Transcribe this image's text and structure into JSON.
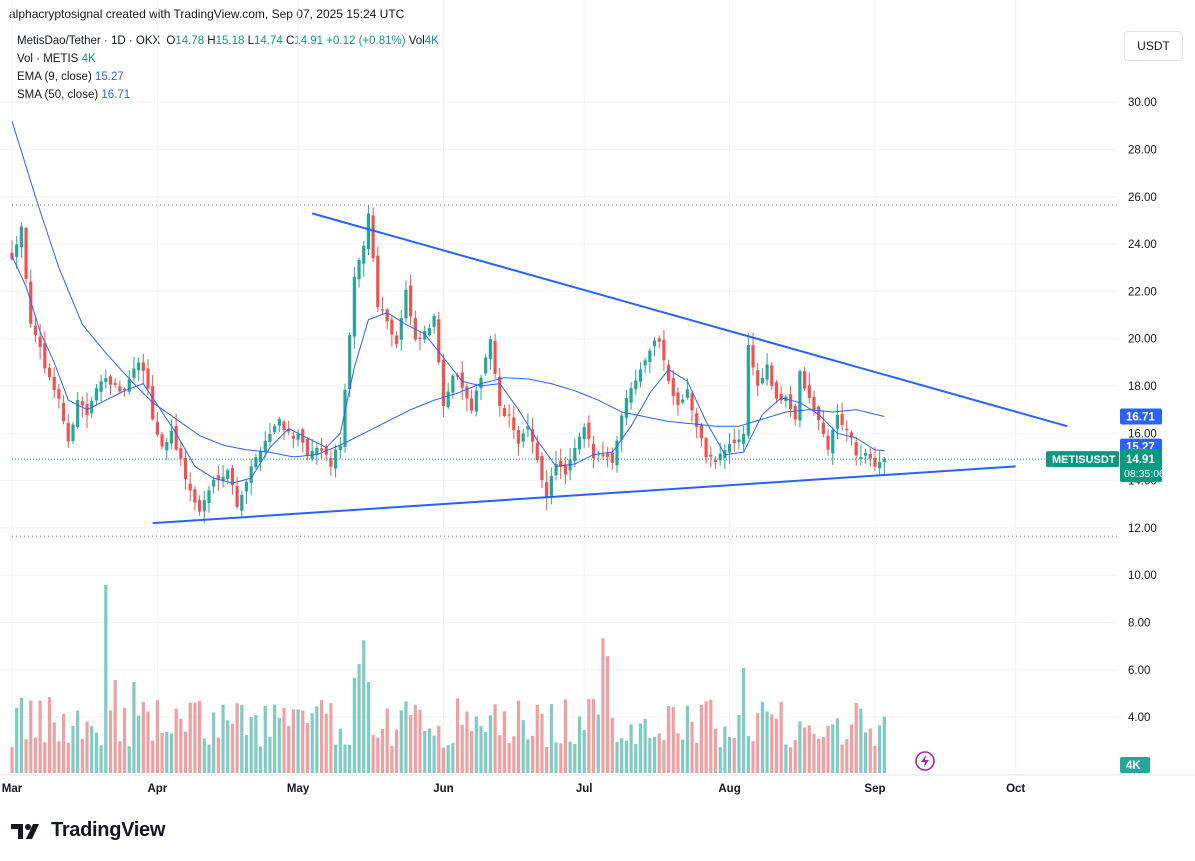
{
  "header": {
    "author_line": "alphacryptosignal created with TradingView.com, Sep 07, 2025 15:24 UTC"
  },
  "legend": {
    "symbol": "MetisDao/Tether · 1D · OKX",
    "open_label": "O",
    "open": "14.78",
    "high_label": "H",
    "high": "15.18",
    "low_label": "L",
    "low": "14.74",
    "close_label": "C",
    "close": "14.91",
    "change": "+0.12 (+0.81%)",
    "vol_label": "Vol",
    "vol_value": "4K",
    "vol_row_label": "Vol · METIS",
    "vol_row_value": "4K",
    "ema_label": "EMA (9, close)",
    "ema_value": "15.27",
    "sma_label": "SMA (50, close)",
    "sma_value": "16.71"
  },
  "currency_button": "USDT",
  "price_tags": {
    "sma": "16.71",
    "ema": "15.27",
    "last_price": "14.91",
    "countdown": "08:35:06",
    "symbol_label": "METISUSDT",
    "volume": "4K"
  },
  "brand": {
    "name": "TradingView"
  },
  "colors": {
    "up": "#26a69a",
    "down": "#ef5350",
    "ma": "#2962ff",
    "trendline": "#2962ff",
    "vol_up": "#80cbc4",
    "vol_down": "#f0a0a0"
  },
  "chart_data": {
    "type": "candlestick",
    "symbol": "METISUSDT",
    "interval": "1D",
    "y_ticks": [
      "30.00",
      "28.00",
      "26.00",
      "24.00",
      "22.00",
      "20.00",
      "18.00",
      "16.00",
      "14.00",
      "12.00",
      "10.00",
      "8.00",
      "6.00",
      "4.00"
    ],
    "y_range": [
      2.0,
      32.0
    ],
    "x_labels": [
      "Mar",
      "Apr",
      "May",
      "Jun",
      "Jul",
      "Aug",
      "Sep",
      "Oct"
    ],
    "x_label_days": [
      0,
      31,
      61,
      92,
      122,
      153,
      184,
      214
    ],
    "horizontal_levels": [
      25.65,
      11.65
    ],
    "last_price": 14.91,
    "trendlines": [
      {
        "name": "upper",
        "from": [
          64,
          25.3
        ],
        "to": [
          225,
          16.3
        ]
      },
      {
        "name": "lower",
        "from": [
          30,
          12.2
        ],
        "to": [
          214,
          14.6
        ]
      }
    ],
    "ohlc_anchors": [
      [
        0,
        23.5
      ],
      [
        2,
        24.8
      ],
      [
        4,
        20.5
      ],
      [
        6,
        19.5
      ],
      [
        8,
        18.3
      ],
      [
        10,
        17.5
      ],
      [
        12,
        15.5
      ],
      [
        14,
        17.5
      ],
      [
        16,
        16.8
      ],
      [
        18,
        17.8
      ],
      [
        20,
        18.5
      ],
      [
        23,
        17.6
      ],
      [
        25,
        18.2
      ],
      [
        27,
        19.0
      ],
      [
        29,
        18.0
      ],
      [
        30,
        16.6
      ],
      [
        32,
        15.4
      ],
      [
        34,
        16.1
      ],
      [
        36,
        14.8
      ],
      [
        38,
        13.5
      ],
      [
        40,
        12.7
      ],
      [
        43,
        14.0
      ],
      [
        46,
        14.5
      ],
      [
        48,
        13.0
      ],
      [
        51,
        14.5
      ],
      [
        53,
        15.4
      ],
      [
        55,
        16.0
      ],
      [
        57,
        16.6
      ],
      [
        59,
        16.0
      ],
      [
        61,
        15.8
      ],
      [
        63,
        15.1
      ],
      [
        66,
        15.3
      ],
      [
        68,
        14.7
      ],
      [
        70,
        15.6
      ],
      [
        72,
        20.0
      ],
      [
        73,
        22.5
      ],
      [
        75,
        24.0
      ],
      [
        76,
        25.3
      ],
      [
        78,
        21.5
      ],
      [
        80,
        20.8
      ],
      [
        82,
        19.8
      ],
      [
        84,
        22.0
      ],
      [
        86,
        19.8
      ],
      [
        88,
        20.2
      ],
      [
        90,
        20.8
      ],
      [
        92,
        17.3
      ],
      [
        94,
        18.5
      ],
      [
        96,
        18.0
      ],
      [
        98,
        16.8
      ],
      [
        100,
        18.5
      ],
      [
        102,
        20.0
      ],
      [
        104,
        17.0
      ],
      [
        106,
        16.6
      ],
      [
        108,
        15.7
      ],
      [
        110,
        16.2
      ],
      [
        112,
        14.8
      ],
      [
        114,
        13.4
      ],
      [
        116,
        14.8
      ],
      [
        118,
        14.2
      ],
      [
        120,
        15.3
      ],
      [
        122,
        16.2
      ],
      [
        124,
        15.0
      ],
      [
        126,
        15.2
      ],
      [
        128,
        14.8
      ],
      [
        130,
        16.8
      ],
      [
        132,
        18.0
      ],
      [
        134,
        18.8
      ],
      [
        136,
        19.6
      ],
      [
        138,
        20.0
      ],
      [
        140,
        18.2
      ],
      [
        142,
        17.3
      ],
      [
        144,
        17.8
      ],
      [
        146,
        16.2
      ],
      [
        148,
        15.1
      ],
      [
        150,
        14.8
      ],
      [
        152,
        15.3
      ],
      [
        154,
        15.6
      ],
      [
        156,
        16.0
      ],
      [
        157,
        19.7
      ],
      [
        159,
        18.0
      ],
      [
        161,
        18.8
      ],
      [
        163,
        17.3
      ],
      [
        165,
        17.6
      ],
      [
        167,
        16.6
      ],
      [
        168,
        18.5
      ],
      [
        170,
        17.4
      ],
      [
        172,
        16.5
      ],
      [
        174,
        15.4
      ],
      [
        176,
        16.7
      ],
      [
        178,
        16.2
      ],
      [
        180,
        15.1
      ],
      [
        182,
        15.0
      ],
      [
        184,
        14.7
      ],
      [
        186,
        14.91
      ]
    ],
    "sma50_anchors": [
      [
        0,
        29.2
      ],
      [
        5,
        26.0
      ],
      [
        10,
        23.0
      ],
      [
        15,
        20.6
      ],
      [
        20,
        19.4
      ],
      [
        25,
        18.3
      ],
      [
        30,
        17.3
      ],
      [
        35,
        16.6
      ],
      [
        40,
        15.9
      ],
      [
        45,
        15.5
      ],
      [
        50,
        15.3
      ],
      [
        55,
        15.2
      ],
      [
        60,
        15.0
      ],
      [
        65,
        15.1
      ],
      [
        70,
        15.5
      ],
      [
        75,
        16.0
      ],
      [
        80,
        16.5
      ],
      [
        85,
        17.0
      ],
      [
        90,
        17.4
      ],
      [
        95,
        17.7
      ],
      [
        100,
        18.1
      ],
      [
        105,
        18.35
      ],
      [
        110,
        18.3
      ],
      [
        115,
        18.1
      ],
      [
        120,
        17.8
      ],
      [
        125,
        17.4
      ],
      [
        130,
        16.9
      ],
      [
        135,
        16.7
      ],
      [
        140,
        16.5
      ],
      [
        145,
        16.4
      ],
      [
        150,
        16.3
      ],
      [
        155,
        16.3
      ],
      [
        160,
        16.6
      ],
      [
        165,
        16.9
      ],
      [
        170,
        17.0
      ],
      [
        175,
        16.9
      ],
      [
        180,
        17.0
      ],
      [
        186,
        16.71
      ]
    ],
    "ema9_anchors": [
      [
        0,
        23.5
      ],
      [
        3,
        22.2
      ],
      [
        6,
        20.3
      ],
      [
        9,
        19.0
      ],
      [
        12,
        17.4
      ],
      [
        16,
        17.0
      ],
      [
        20,
        17.4
      ],
      [
        24,
        17.8
      ],
      [
        28,
        18.1
      ],
      [
        31,
        17.2
      ],
      [
        35,
        16.0
      ],
      [
        39,
        14.6
      ],
      [
        43,
        14.1
      ],
      [
        47,
        13.9
      ],
      [
        51,
        14.1
      ],
      [
        55,
        15.4
      ],
      [
        59,
        16.2
      ],
      [
        63,
        15.8
      ],
      [
        67,
        15.4
      ],
      [
        70,
        16.0
      ],
      [
        73,
        18.8
      ],
      [
        76,
        20.8
      ],
      [
        80,
        21.1
      ],
      [
        84,
        20.6
      ],
      [
        88,
        20.2
      ],
      [
        92,
        19.2
      ],
      [
        96,
        18.2
      ],
      [
        100,
        18.0
      ],
      [
        104,
        18.1
      ],
      [
        108,
        17.0
      ],
      [
        112,
        15.7
      ],
      [
        116,
        14.6
      ],
      [
        120,
        14.7
      ],
      [
        124,
        15.1
      ],
      [
        128,
        15.2
      ],
      [
        132,
        16.3
      ],
      [
        136,
        17.7
      ],
      [
        140,
        18.7
      ],
      [
        144,
        18.2
      ],
      [
        148,
        16.5
      ],
      [
        152,
        15.1
      ],
      [
        156,
        15.2
      ],
      [
        160,
        16.8
      ],
      [
        164,
        17.5
      ],
      [
        168,
        17.3
      ],
      [
        172,
        16.8
      ],
      [
        176,
        16.0
      ],
      [
        180,
        15.8
      ],
      [
        184,
        15.3
      ],
      [
        186,
        15.27
      ]
    ],
    "volume_spikes": [
      [
        20,
        9.5
      ],
      [
        75,
        6.7
      ],
      [
        126,
        6.8
      ],
      [
        127,
        5.9
      ],
      [
        156,
        5.3
      ],
      [
        22,
        4.7
      ],
      [
        26,
        4.6
      ],
      [
        73,
        4.8
      ],
      [
        74,
        5.5
      ],
      [
        76,
        4.6
      ]
    ],
    "volume_base": 3.2
  }
}
